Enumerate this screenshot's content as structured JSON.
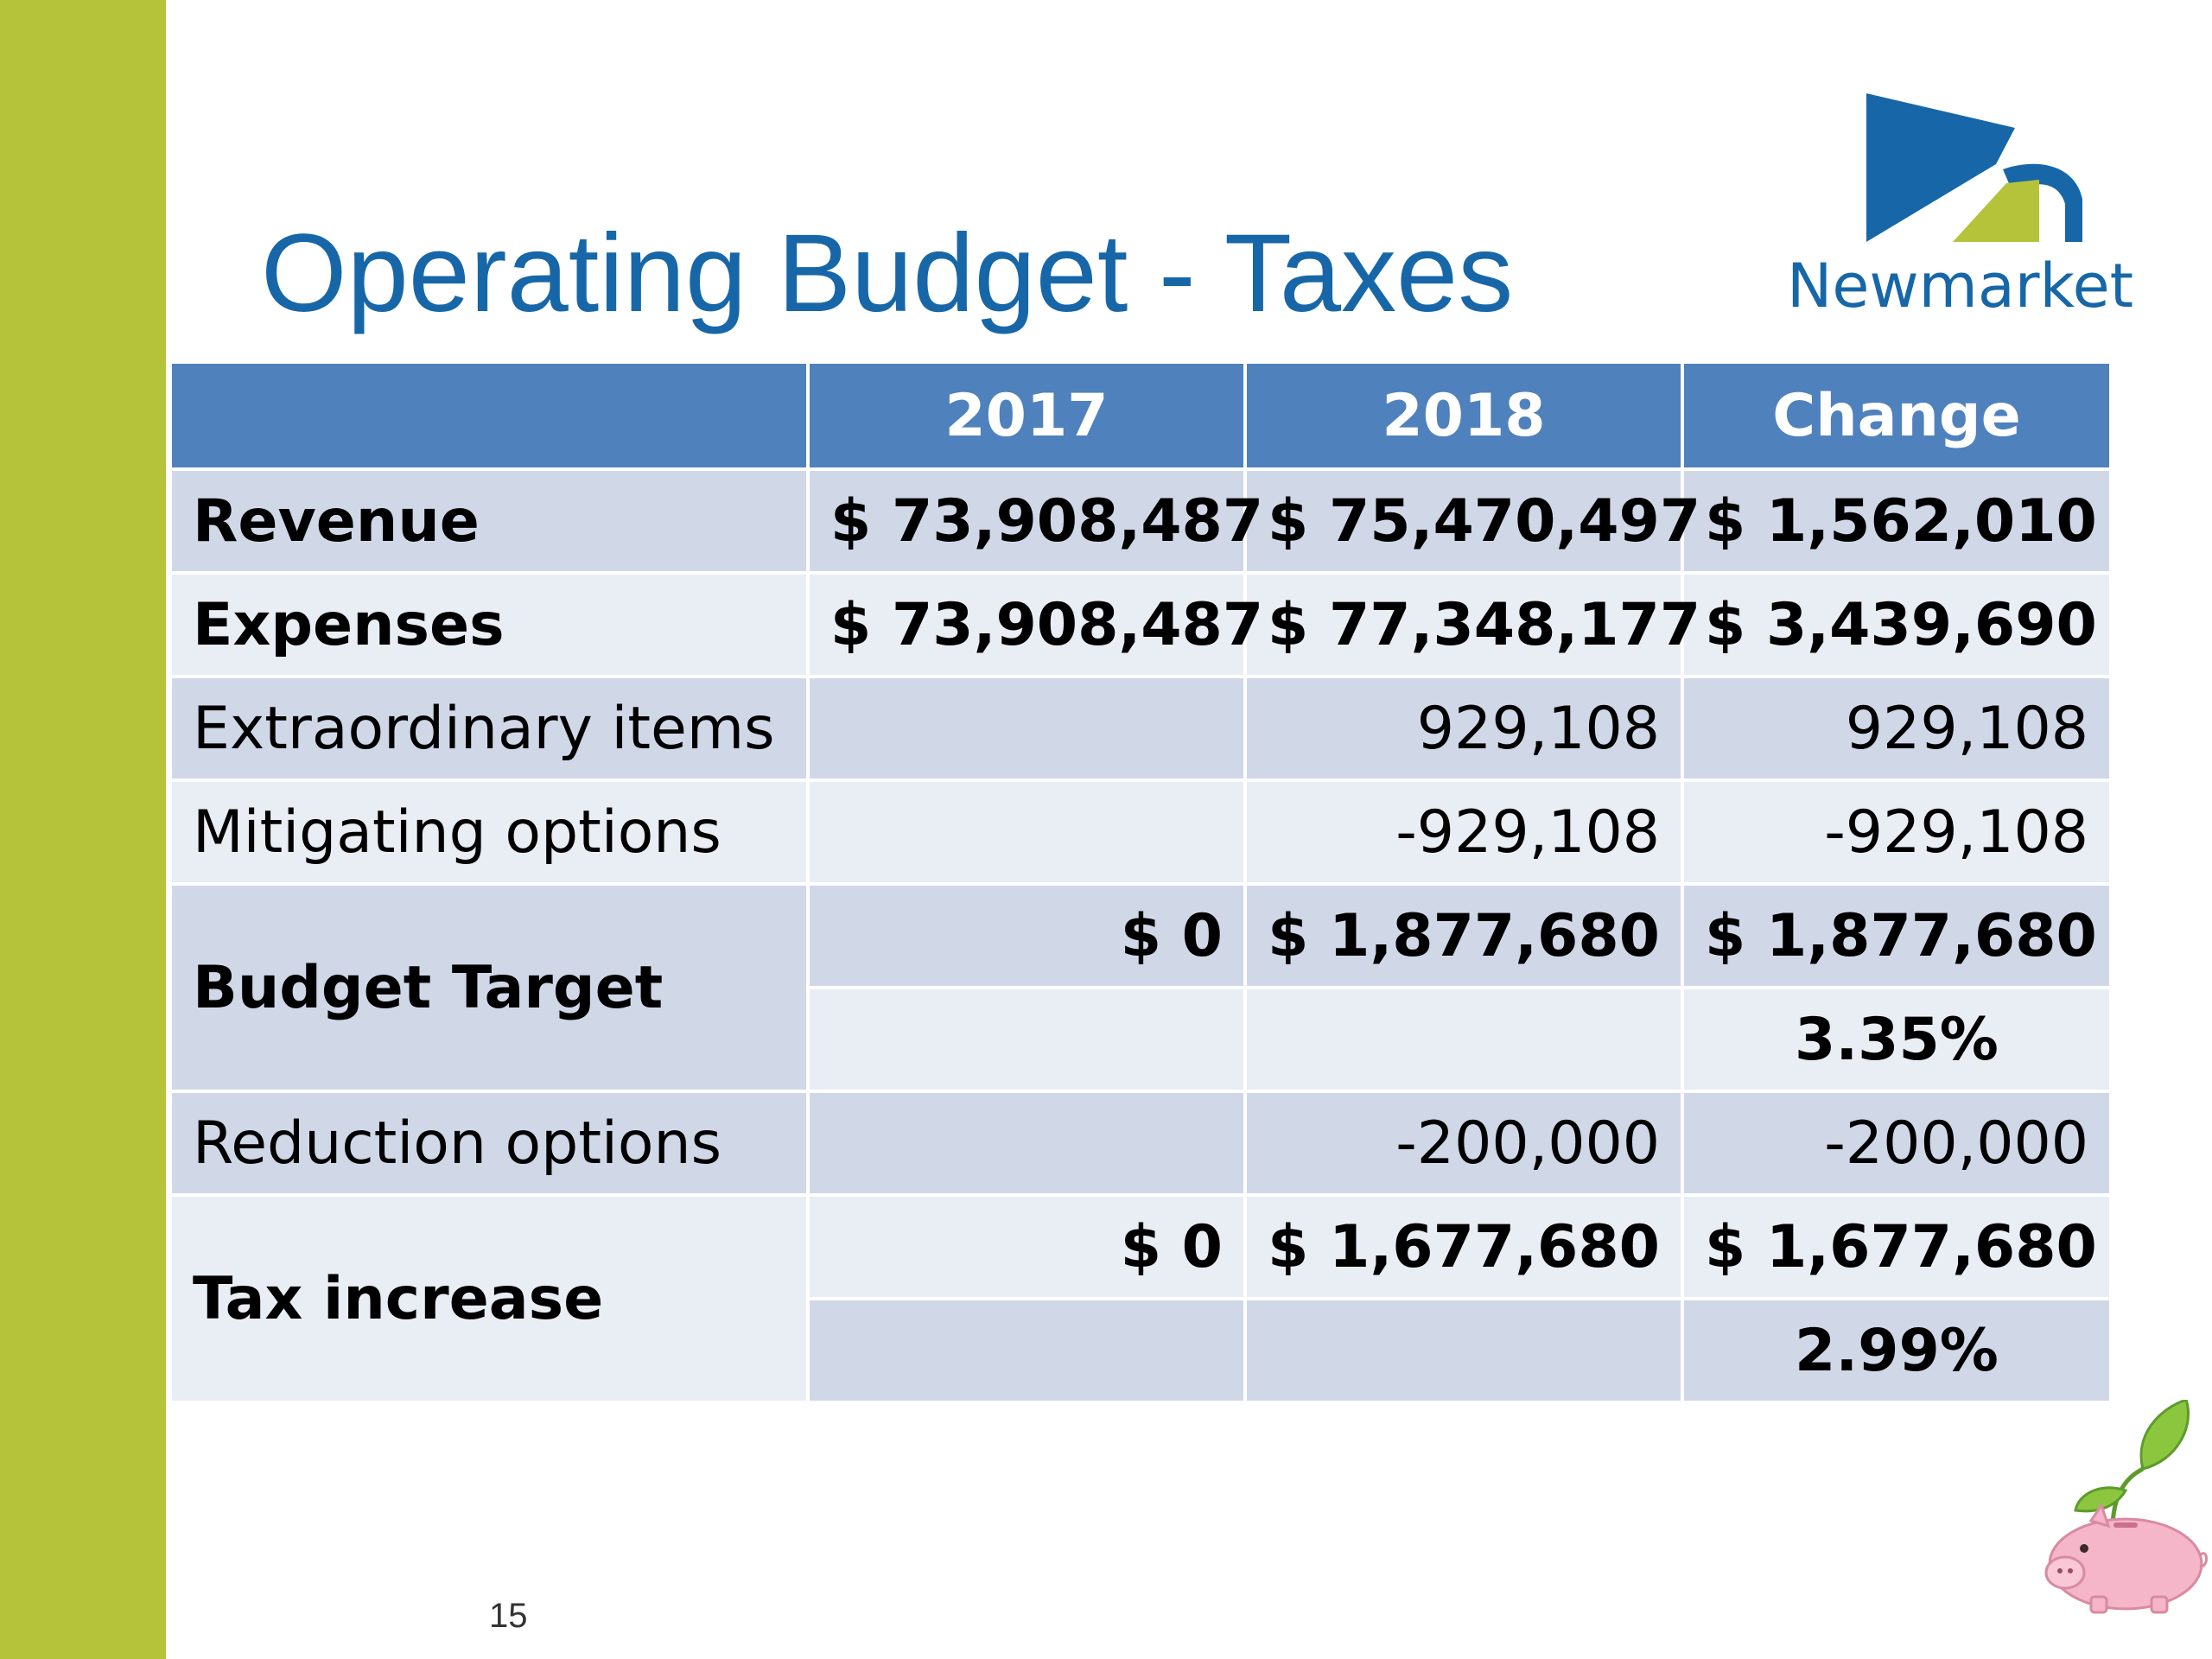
{
  "slide": {
    "title": "Operating Budget - Taxes",
    "page_number": "15"
  },
  "logo": {
    "name": "Newmarket",
    "colors": {
      "blue": "#1767a8",
      "green": "#b5c33a"
    }
  },
  "colors": {
    "sidebar": "#b5c33a",
    "title": "#1767a8",
    "header_fill": "#4f81bd",
    "row_dark": "#d0d8e8",
    "row_light": "#e9edf4"
  },
  "table": {
    "headers": [
      "",
      "2017",
      "2018",
      "Change"
    ],
    "rows": {
      "revenue": {
        "label": "Revenue",
        "y2017": "$ 73,908,487",
        "y2018": "$ 75,470,497",
        "change": "$ 1,562,010"
      },
      "expenses": {
        "label": "Expenses",
        "y2017": "$ 73,908,487",
        "y2018": "$ 77,348,177",
        "change": "$ 3,439,690"
      },
      "extraordinary": {
        "label": "Extraordinary items",
        "y2017": "",
        "y2018": "929,108",
        "change": "929,108"
      },
      "mitigating": {
        "label": "Mitigating options",
        "y2017": "",
        "y2018": "-929,108",
        "change": "-929,108"
      },
      "budget_target": {
        "label": "Budget Target",
        "y2017": "$ 0",
        "y2018": "$ 1,877,680",
        "change": "$ 1,877,680",
        "change_pct": "3.35%"
      },
      "reduction": {
        "label": "Reduction options",
        "y2017": "",
        "y2018": "-200,000",
        "change": "-200,000"
      },
      "tax_increase": {
        "label": "Tax increase",
        "y2017": "$ 0",
        "y2018": "$ 1,677,680",
        "change": "$ 1,677,680",
        "change_pct": "2.99%"
      }
    }
  },
  "decorations": {
    "piggy_bank_icon": "piggy-bank-with-sprout"
  }
}
